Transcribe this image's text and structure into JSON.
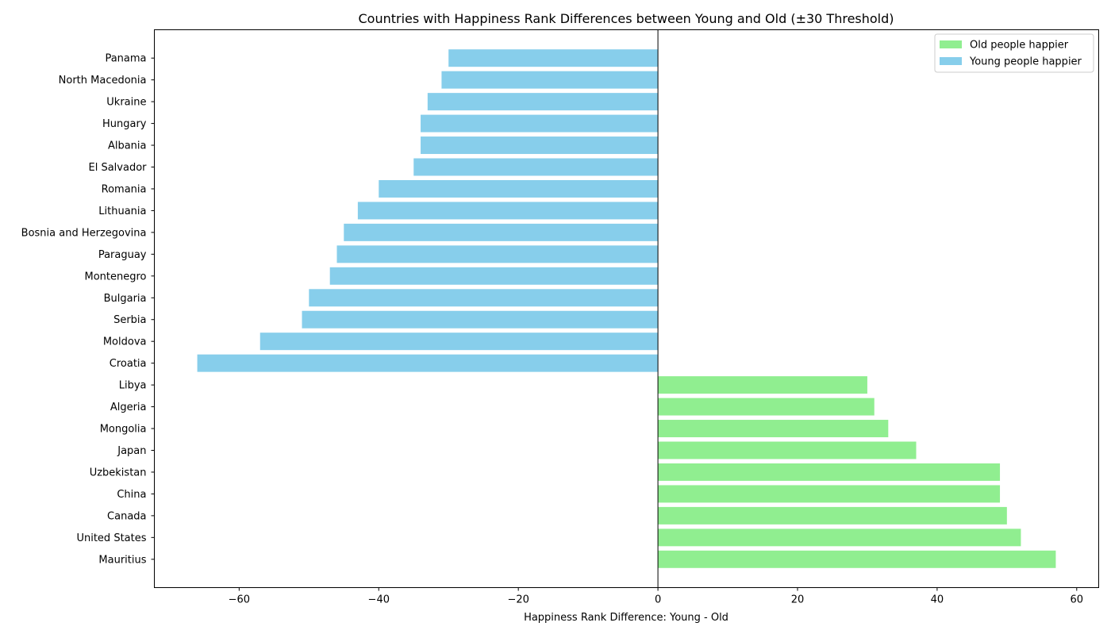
{
  "chart_data": {
    "type": "bar",
    "orientation": "horizontal",
    "title": "Countries with Happiness Rank Differences between Young and Old (±30 Threshold)",
    "xlabel": "Happiness Rank Difference: Young - Old",
    "ylabel": "",
    "xlim": [
      -72.15,
      63.15
    ],
    "xticks": [
      -60,
      -40,
      -20,
      0,
      20,
      40,
      60
    ],
    "xtick_labels": [
      "−60",
      "−40",
      "−20",
      "0",
      "20",
      "40",
      "60"
    ],
    "grid": false,
    "legend_position": "top-right",
    "categories": [
      "Mauritius",
      "United States",
      "Canada",
      "China",
      "Uzbekistan",
      "Japan",
      "Mongolia",
      "Algeria",
      "Libya",
      "Croatia",
      "Moldova",
      "Serbia",
      "Bulgaria",
      "Montenegro",
      "Paraguay",
      "Bosnia and Herzegovina",
      "Lithuania",
      "Romania",
      "El Salvador",
      "Albania",
      "Hungary",
      "Ukraine",
      "North Macedonia",
      "Panama"
    ],
    "values": [
      57,
      52,
      50,
      49,
      49,
      37,
      33,
      31,
      30,
      -66,
      -57,
      -51,
      -50,
      -47,
      -46,
      -45,
      -43,
      -40,
      -35,
      -34,
      -34,
      -33,
      -31,
      -30
    ],
    "series": [
      {
        "name": "Old people happier",
        "color": "#90ee90",
        "rule": "positive"
      },
      {
        "name": "Young people happier",
        "color": "#87ceeb",
        "rule": "negative"
      }
    ]
  }
}
